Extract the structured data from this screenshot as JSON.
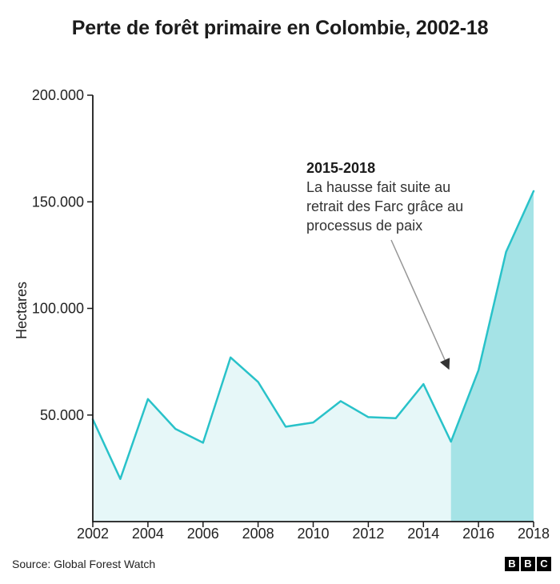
{
  "header": {
    "title": "Perte de forêt primaire en Colombie, 2002-18"
  },
  "chart_data": {
    "type": "area",
    "title": "Perte de forêt primaire en Colombie, 2002-18",
    "ylabel": "Hectares",
    "xlabel": "",
    "x": [
      2002,
      2003,
      2004,
      2005,
      2006,
      2007,
      2008,
      2009,
      2010,
      2011,
      2012,
      2013,
      2014,
      2015,
      2016,
      2017,
      2018
    ],
    "values": [
      48000,
      20000,
      57500,
      43500,
      37000,
      77000,
      65500,
      44500,
      46500,
      56500,
      49000,
      48500,
      64500,
      37500,
      71000,
      126500,
      155000
    ],
    "xticks": [
      2002,
      2004,
      2006,
      2008,
      2010,
      2012,
      2014,
      2016,
      2018
    ],
    "yticks": [
      50000,
      100000,
      150000,
      200000
    ],
    "ytick_labels": [
      "50.000",
      "100.000",
      "150.000",
      "200.000"
    ],
    "ylim": [
      0,
      200000
    ],
    "grid": false,
    "legend": "none",
    "highlight_from_year": 2015,
    "colors": {
      "line": "#29c2c9",
      "area_light": "#e6f7f8",
      "area_dark": "#a5e3e6",
      "axis": "#1a1a1a",
      "arrow_shaft": "#969696",
      "arrow_head": "#333333"
    },
    "annotation": {
      "heading": "2015-2018",
      "lines": [
        "La hausse fait suite au",
        "retrait des Farc grâce au",
        "processus de paix"
      ]
    }
  },
  "footer": {
    "source": "Source: Global Forest Watch",
    "logo_letters": [
      "B",
      "B",
      "C"
    ]
  }
}
